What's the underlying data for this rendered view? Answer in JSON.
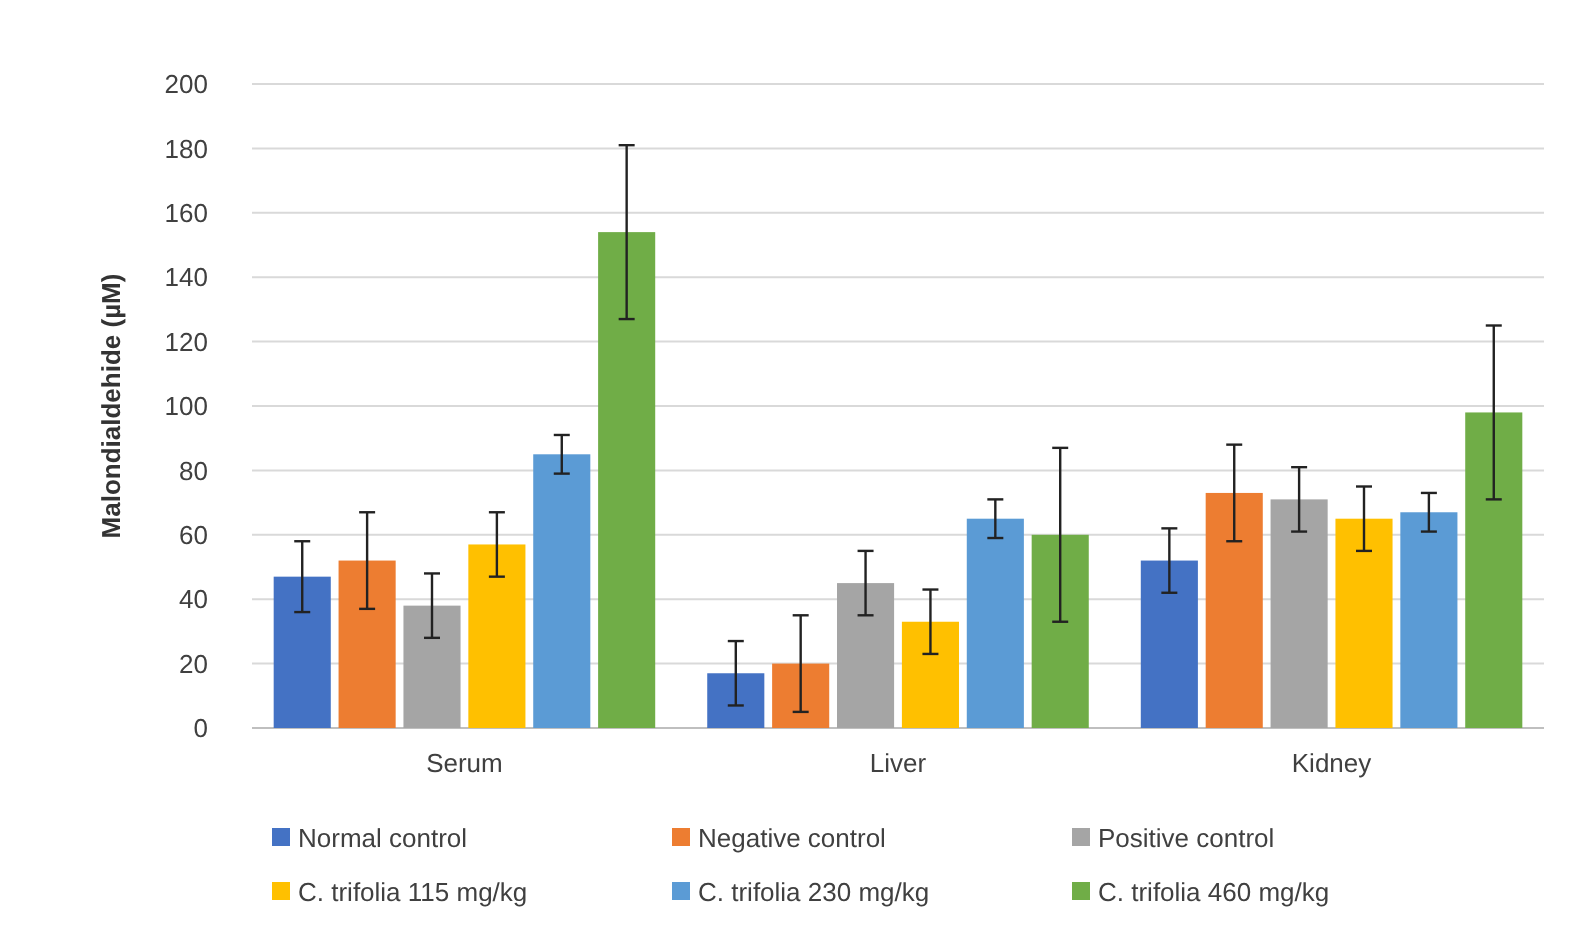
{
  "chart_data": {
    "type": "bar",
    "ylabel": "Malondialdehide (µM)",
    "categories": [
      "Serum",
      "Liver",
      "Kidney"
    ],
    "series": [
      {
        "name": "Normal control",
        "color": "#4472c4",
        "values": [
          47,
          17,
          52
        ],
        "errors": [
          11,
          10,
          10
        ]
      },
      {
        "name": "Negative control",
        "color": "#ed7d31",
        "values": [
          52,
          20,
          73
        ],
        "errors": [
          15,
          15,
          15
        ]
      },
      {
        "name": "Positive control",
        "color": "#a5a5a5",
        "values": [
          38,
          45,
          71
        ],
        "errors": [
          10,
          10,
          10
        ]
      },
      {
        "name": "C. trifolia 115 mg/kg",
        "color": "#ffc000",
        "values": [
          57,
          33,
          65
        ],
        "errors": [
          10,
          10,
          10
        ]
      },
      {
        "name": "C. trifolia 230 mg/kg",
        "color": "#5b9bd5",
        "values": [
          85,
          65,
          67
        ],
        "errors": [
          6,
          6,
          6
        ]
      },
      {
        "name": "C. trifolia 460 mg/kg",
        "color": "#70ad47",
        "values": [
          154,
          60,
          98
        ],
        "errors": [
          27,
          27,
          27
        ]
      }
    ],
    "ylim": [
      0,
      200
    ],
    "yticks": [
      0,
      20,
      40,
      60,
      80,
      100,
      120,
      140,
      160,
      180,
      200
    ],
    "grid": "y",
    "legend": "bottom"
  }
}
